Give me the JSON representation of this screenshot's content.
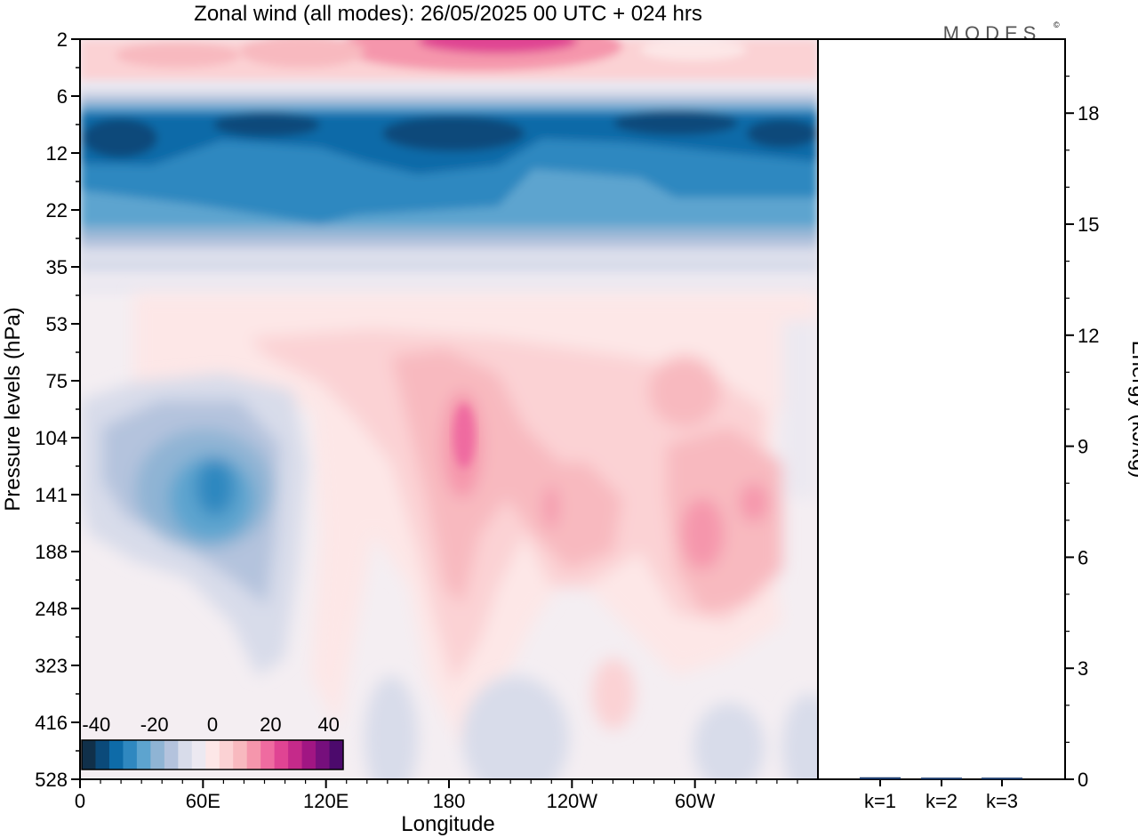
{
  "title": "Zonal wind (all modes):  26/05/2025  00 UTC  + 024 hrs",
  "logo_text": "MODES",
  "logo_mark": "©",
  "chart_data": [
    {
      "type": "heatmap",
      "title": "Zonal wind (all modes):  26/05/2025  00 UTC  + 024 hrs",
      "xlabel": "Longitude",
      "ylabel": "Pressure levels (hPa)",
      "x_ticks": [
        "0",
        "60E",
        "120E",
        "180",
        "120W",
        "60W"
      ],
      "y_ticks": [
        "2",
        "6",
        "12",
        "22",
        "35",
        "53",
        "75",
        "104",
        "141",
        "188",
        "248",
        "323",
        "416",
        "528"
      ],
      "colorbar": {
        "tick_labels": [
          "-40",
          "-20",
          "0",
          "20",
          "40"
        ],
        "range": [
          -45,
          45
        ],
        "step": 5,
        "colors": [
          "#10304a",
          "#0b4a7a",
          "#0e6ba8",
          "#2f88c0",
          "#5da4cf",
          "#8fb4d4",
          "#b4c3dd",
          "#d8dcea",
          "#ece9f1",
          "#fde7e7",
          "#fbd2d4",
          "#f8b9bf",
          "#f596ac",
          "#ef6ba0",
          "#e04493",
          "#c52a8a",
          "#a11683",
          "#760f7c",
          "#4c0a6c"
        ]
      }
    },
    {
      "type": "bar",
      "categories": [
        "k=1",
        "k=2",
        "k=3"
      ],
      "values": [
        0.03,
        0.02,
        0.02
      ],
      "ylabel": "Energy (kJ/kg)",
      "ylim": [
        0,
        20
      ],
      "y_ticks": [
        "0",
        "3",
        "6",
        "9",
        "12",
        "15",
        "18"
      ],
      "bar_color": "#1a3a6a"
    }
  ]
}
